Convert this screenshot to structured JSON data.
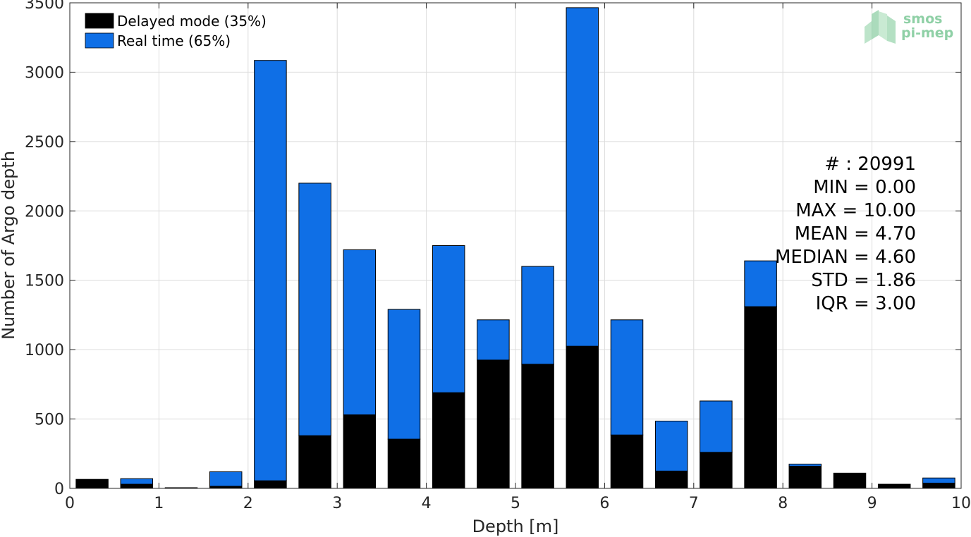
{
  "chart_data": {
    "type": "bar",
    "stacked": true,
    "xlabel": "Depth [m]",
    "ylabel": "Number of Argo depth",
    "xlim": [
      0,
      10
    ],
    "ylim": [
      0,
      3500
    ],
    "xticks": [
      0,
      1,
      2,
      3,
      4,
      5,
      6,
      7,
      8,
      9,
      10
    ],
    "yticks": [
      0,
      500,
      1000,
      1500,
      2000,
      2500,
      3000,
      3500
    ],
    "grid": true,
    "bin_width": 0.5,
    "x": [
      0.25,
      0.75,
      1.25,
      1.75,
      2.25,
      2.75,
      3.25,
      3.75,
      4.25,
      4.75,
      5.25,
      5.75,
      6.25,
      6.75,
      7.25,
      7.75,
      8.25,
      8.75,
      9.25,
      9.75
    ],
    "series": [
      {
        "name": "Delayed mode (35%)",
        "color": "#000000",
        "values": [
          65,
          30,
          5,
          15,
          55,
          380,
          530,
          355,
          690,
          925,
          895,
          1025,
          385,
          125,
          260,
          1310,
          160,
          110,
          30,
          38
        ]
      },
      {
        "name": "Real time (65%)",
        "color": "#0f6fe6",
        "values": [
          0,
          40,
          0,
          105,
          3030,
          1820,
          1190,
          935,
          1060,
          290,
          705,
          2440,
          830,
          360,
          370,
          330,
          15,
          0,
          0,
          37
        ]
      }
    ],
    "legend_position": "top-left",
    "stats": [
      "# : 20991",
      "MIN = 0.00",
      "MAX =  10.00",
      "MEAN = 4.70",
      "MEDIAN = 4.60",
      "STD = 1.86",
      "IQR = 3.00"
    ],
    "logo": [
      "smos",
      "pi-mep"
    ]
  }
}
